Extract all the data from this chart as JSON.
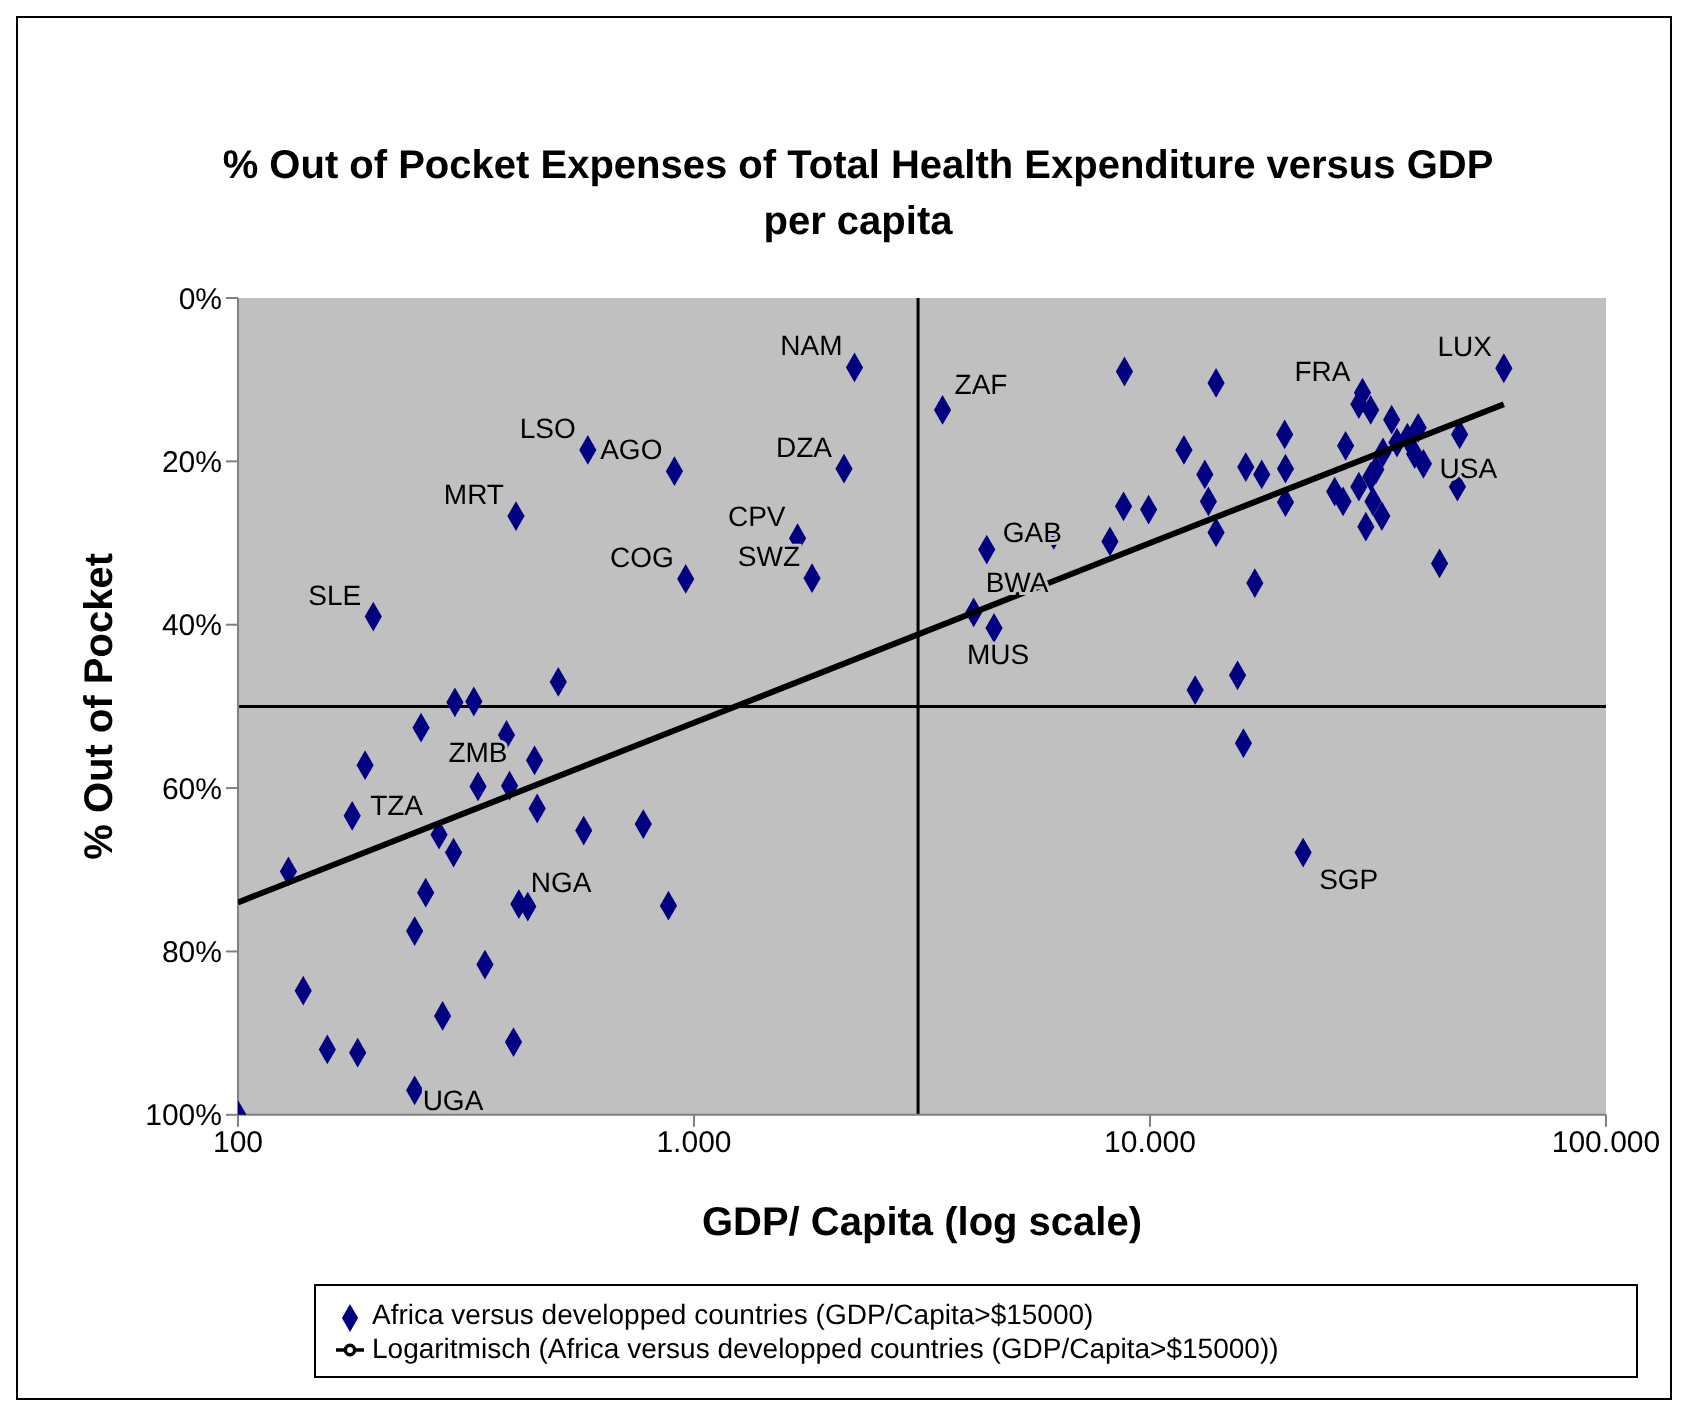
{
  "chart_data": {
    "type": "scatter",
    "title": "% Out of Pocket Expenses of Total Health Expenditure versus GDP per capita",
    "xlabel": "GDP/ Capita (log scale)",
    "ylabel": "% Out of Pocket",
    "log": "x",
    "xlim": [
      100,
      100000
    ],
    "xticks": [
      100,
      {
        "value": 1000,
        "label": "1.000"
      },
      {
        "value": 10000,
        "label": "10.000"
      },
      {
        "value": 100000,
        "label": "100.000"
      }
    ],
    "ylim": [
      100,
      0
    ],
    "yticks": [
      {
        "value": 0,
        "label": "0%"
      },
      {
        "value": 20,
        "label": "20%"
      },
      {
        "value": 40,
        "label": "40%"
      },
      {
        "value": 60,
        "label": "60%"
      },
      {
        "value": 80,
        "label": "80%"
      },
      {
        "value": 100,
        "label": "100%"
      }
    ],
    "grid": false,
    "legend": "bottom",
    "marker": "diamond",
    "series": [
      {
        "name": "Africa versus developped countries (GDP/Capita>$15000)",
        "color": "#000080",
        "x": [
          2249,
          585,
          906,
          2133,
          407,
          1687,
          959,
          1815,
          198,
          504,
          299,
          329,
          3508,
          8790,
          13960,
          59700,
          29240,
          28710,
          30480,
          33880,
          19740,
          26850,
          11870,
          38740,
          36680,
          34800,
          32430,
          38050,
          39780,
          47750,
          16220,
          17580,
          19820,
          13190,
          31280,
          30480,
          28710,
          25410,
          26510,
          30830,
          32240,
          29740,
          47220,
          13430,
          19820,
          8750,
          9930,
          13960,
          6150,
          8170,
          4385,
          43150,
          16980,
          4105,
          4550,
          15560,
          12560,
          16030,
          21670,
          252,
          388,
          190,
          447,
          336,
          394,
          453,
          178,
          573,
          774,
          276,
          297,
          129,
          258,
          413,
          432,
          879,
          244,
          348,
          139,
          281,
          157,
          183,
          402,
          244,
          100
        ],
        "values": [
          8.5,
          18.6,
          21.2,
          20.9,
          26.7,
          29.4,
          34.4,
          34.3,
          39,
          47,
          49.5,
          49.4,
          13.7,
          9,
          10.4,
          8.6,
          11.6,
          13,
          13.7,
          14.9,
          16.7,
          18.1,
          18.6,
          15.9,
          17.1,
          17.7,
          18.9,
          19.1,
          20.3,
          16.7,
          20.7,
          21.6,
          20.9,
          21.6,
          21,
          21.9,
          23.1,
          23.7,
          24.9,
          24.9,
          26.7,
          28,
          23.1,
          24.9,
          25,
          25.5,
          25.9,
          28.7,
          29,
          29.8,
          30.8,
          32.5,
          34.9,
          38.5,
          40.4,
          46.2,
          48,
          54.5,
          67.9,
          52.6,
          53.5,
          57.2,
          56.6,
          59.8,
          59.7,
          62.5,
          63.4,
          65.2,
          64.4,
          65.7,
          67.9,
          70.2,
          72.8,
          74.2,
          74.5,
          74.4,
          77.5,
          81.6,
          84.8,
          87.9,
          92,
          92.4,
          91.1,
          97,
          100
        ]
      },
      {
        "name": "Logaritmisch (Africa versus developped countries (GDP/Capita>$15000))",
        "type": "line",
        "color": "#000000",
        "marker": "none",
        "x": [
          100,
          1000,
          10000,
          59700
        ],
        "values": [
          74,
          52,
          30,
          13
        ]
      }
    ],
    "ref_lines": [
      {
        "axis": "x",
        "value": 3100,
        "color": "#000000"
      },
      {
        "axis": "y",
        "value": 50,
        "color": "#000000"
      }
    ],
    "annotations": [
      {
        "text": "NAM",
        "x": 2249,
        "y": 8.5
      },
      {
        "text": "ZAF",
        "x": 3508,
        "y": 13.7
      },
      {
        "text": "LSO",
        "x": 585,
        "y": 18.6
      },
      {
        "text": "AGO",
        "x": 906,
        "y": 21.2
      },
      {
        "text": "DZA",
        "x": 2133,
        "y": 20.9
      },
      {
        "text": "MRT",
        "x": 407,
        "y": 26.7
      },
      {
        "text": "CPV",
        "x": 1687,
        "y": 29.4
      },
      {
        "text": "COG",
        "x": 959,
        "y": 34.4
      },
      {
        "text": "SWZ",
        "x": 1815,
        "y": 34.3
      },
      {
        "text": "SLE",
        "x": 198,
        "y": 39
      },
      {
        "text": "GAB",
        "x": 4385,
        "y": 30.8
      },
      {
        "text": "BWA",
        "x": 4105,
        "y": 38.5
      },
      {
        "text": "MUS",
        "x": 4550,
        "y": 40.4
      },
      {
        "text": "FRA",
        "x": 29240,
        "y": 11.6
      },
      {
        "text": "LUX",
        "x": 59700,
        "y": 8.6
      },
      {
        "text": "USA",
        "x": 47750,
        "y": 16.7
      },
      {
        "text": "SGP",
        "x": 21670,
        "y": 67.9
      },
      {
        "text": "ZMB",
        "x": 336,
        "y": 59.8
      },
      {
        "text": "TZA",
        "x": 276,
        "y": 65.7
      },
      {
        "text": "NGA",
        "x": 413,
        "y": 74.2
      },
      {
        "text": "UGA",
        "x": 244,
        "y": 97
      }
    ]
  }
}
